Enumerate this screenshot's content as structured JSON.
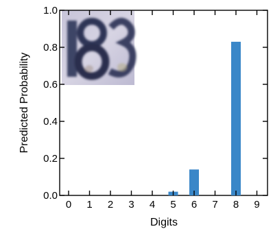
{
  "chart_data": {
    "type": "bar",
    "xlabel": "Digits",
    "ylabel": "Predicted Probability",
    "categories": [
      "0",
      "1",
      "2",
      "3",
      "4",
      "5",
      "6",
      "7",
      "8",
      "9"
    ],
    "values": [
      0,
      0,
      0,
      0,
      0,
      0.02,
      0.14,
      0,
      0.83,
      0
    ],
    "ylim": [
      0,
      1.0
    ],
    "yticks": [
      "0.0",
      "0.2",
      "0.4",
      "0.6",
      "0.8",
      "1.0"
    ],
    "bar_color": "#3a87c8",
    "grid": false,
    "inset_image": {
      "description_icon": "digit-image-icon",
      "digits_shown": "183"
    }
  }
}
